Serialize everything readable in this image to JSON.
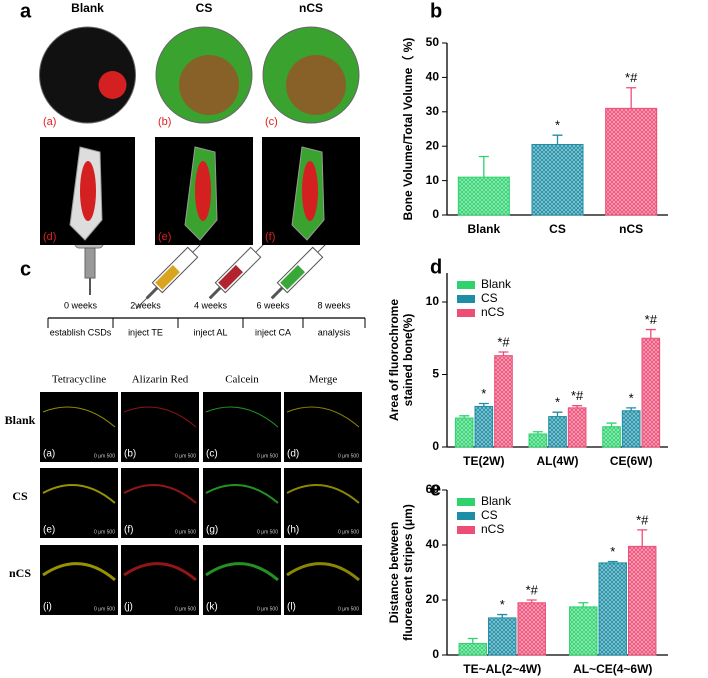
{
  "chart_data": [
    {
      "type": "bar",
      "ylabel": "Bone Volume/Total Volume（ %)",
      "categories": [
        "Blank",
        "CS",
        "nCS"
      ],
      "values": [
        11,
        20.5,
        31
      ],
      "errors": [
        6,
        2.7,
        6
      ],
      "colors": [
        "#2ed36e",
        "#1e8ea6",
        "#ee4d76"
      ],
      "significance": [
        null,
        "*",
        "*#"
      ],
      "ylim": [
        0,
        50
      ],
      "yticks": [
        0,
        10,
        20,
        30,
        40,
        50
      ]
    },
    {
      "type": "grouped-bar",
      "ylabel": [
        "Area of fluorochrome",
        "stained bone(%)"
      ],
      "categories": [
        "TE(2W)",
        "AL(4W)",
        "CE(6W)"
      ],
      "series": [
        {
          "name": "Blank",
          "color": "#2ed36e",
          "values": [
            2.0,
            0.9,
            1.4
          ],
          "errors": [
            0.15,
            0.15,
            0.25
          ],
          "significance": [
            null,
            null,
            null
          ]
        },
        {
          "name": "CS",
          "color": "#1e8ea6",
          "values": [
            2.8,
            2.1,
            2.5
          ],
          "errors": [
            0.2,
            0.3,
            0.2
          ],
          "significance": [
            "*",
            "*",
            "*"
          ]
        },
        {
          "name": "nCS",
          "color": "#ee4d76",
          "values": [
            6.3,
            2.7,
            7.5
          ],
          "errors": [
            0.25,
            0.15,
            0.6
          ],
          "significance": [
            "*#",
            "*#",
            "*#"
          ]
        }
      ],
      "ylim": [
        0,
        12
      ],
      "yticks": [
        0,
        5,
        10
      ],
      "legend": "top-left"
    },
    {
      "type": "grouped-bar",
      "ylabel": [
        "Distance between",
        "fluoreacent stripes (μm)"
      ],
      "categories": [
        "TE~AL(2~4W)",
        "AL~CE(4~6W)"
      ],
      "series": [
        {
          "name": "Blank",
          "color": "#2ed36e",
          "values": [
            4.2,
            17.5
          ],
          "errors": [
            1.8,
            1.5
          ],
          "significance": [
            null,
            null
          ]
        },
        {
          "name": "CS",
          "color": "#1e8ea6",
          "values": [
            13.5,
            33.5
          ],
          "errors": [
            1.2,
            0.5
          ],
          "significance": [
            "*",
            "*"
          ]
        },
        {
          "name": "nCS",
          "color": "#ee4d76",
          "values": [
            19,
            39.5
          ],
          "errors": [
            1,
            6
          ],
          "significance": [
            "*#",
            "*#"
          ]
        }
      ],
      "ylim": [
        0,
        60
      ],
      "yticks": [
        0,
        20,
        40,
        60
      ],
      "legend": "top-left"
    }
  ],
  "figure": {
    "panel_letters": [
      "a",
      "b",
      "c",
      "d",
      "e"
    ],
    "ct": {
      "headers": [
        "Blank",
        "CS",
        "nCS"
      ],
      "labels": [
        "(a)",
        "(b)",
        "(c)",
        "(d)",
        "(e)",
        "(f)"
      ]
    },
    "timeline": {
      "weeks": [
        "0 weeks",
        "2weeks",
        "4 weeks",
        "6 weeks",
        "8 weeks"
      ],
      "events": [
        "establish CSDs",
        "inject TE",
        "inject AL",
        "inject CA",
        "analysis"
      ]
    },
    "fluorescence": {
      "headers": [
        "Tetracycline",
        "Alizarin Red",
        "Calcein",
        "Merge"
      ],
      "rows": [
        "Blank",
        "CS",
        "nCS"
      ],
      "labels": [
        "(a)",
        "(b)",
        "(c)",
        "(d)",
        "(e)",
        "(f)",
        "(g)",
        "(h)",
        "(i)",
        "(j)",
        "(k)",
        "(l)"
      ],
      "scale": "0    μm   500"
    }
  }
}
